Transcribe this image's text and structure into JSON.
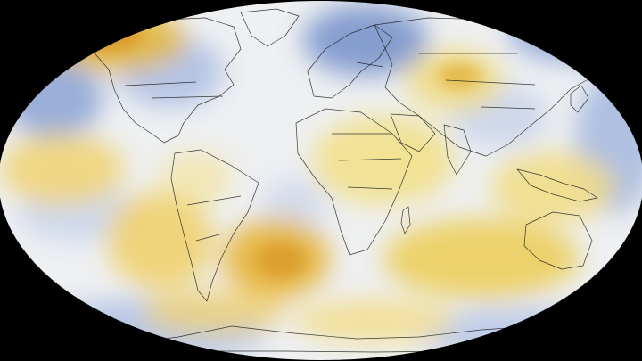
{
  "map": {
    "projection": "robinson",
    "background_color": "#000000",
    "coastline_color": "#1a1a1a",
    "palette": {
      "cold": "#7f99cc",
      "cool": "#b8c8e6",
      "neutral": "#f4f3ee",
      "warm": "#f2e18a",
      "hot": "#e7c23a",
      "hottest": "#d99a2a"
    },
    "labels": []
  }
}
